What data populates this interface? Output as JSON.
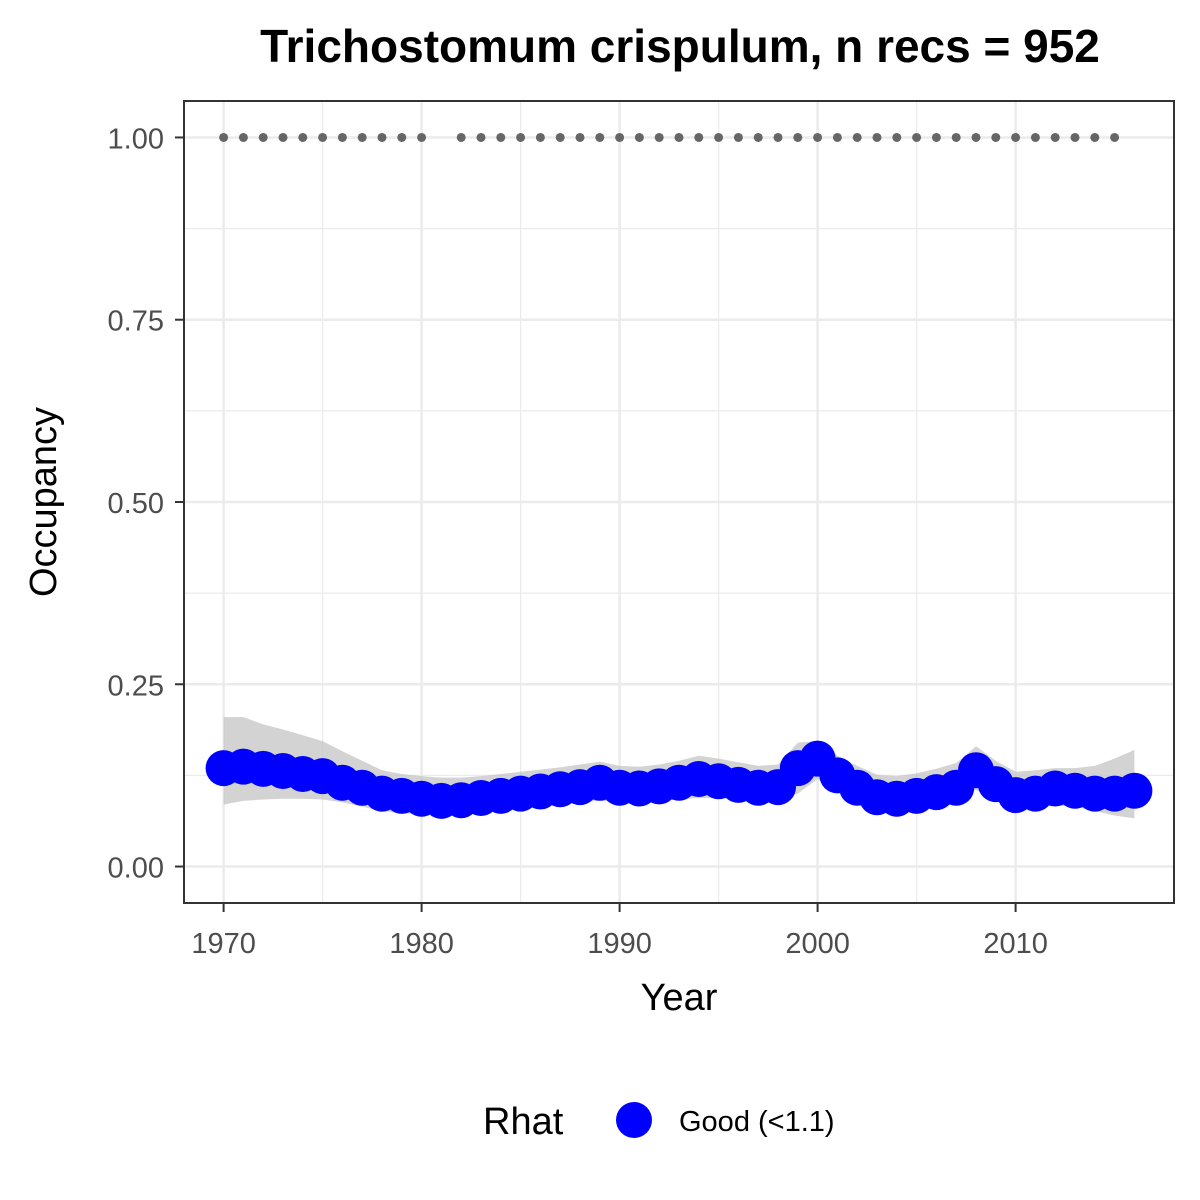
{
  "chart_data": {
    "type": "line",
    "title": "Trichostomum crispulum, n recs = 952",
    "xlabel": "Year",
    "ylabel": "Occupancy",
    "xlim": [
      1968,
      2018
    ],
    "ylim": [
      -0.05,
      1.05
    ],
    "x_ticks": [
      1970,
      1980,
      1990,
      2000,
      2010
    ],
    "x_tick_labels": [
      "1970",
      "1980",
      "1990",
      "2000",
      "2010"
    ],
    "y_ticks": [
      0,
      0.25,
      0.5,
      0.75,
      1
    ],
    "y_tick_labels": [
      "0.00",
      "0.25",
      "0.50",
      "0.75",
      "1.00"
    ],
    "grid": true,
    "legend": {
      "position": "bottom",
      "title": "Rhat",
      "entries": [
        {
          "label": "Good (<1.1)",
          "color": "#0000ff"
        }
      ]
    },
    "series": [
      {
        "name": "Good (<1.1)",
        "color": "#0000ff",
        "x": [
          1970,
          1971,
          1972,
          1973,
          1974,
          1975,
          1976,
          1977,
          1978,
          1979,
          1980,
          1981,
          1982,
          1983,
          1984,
          1985,
          1986,
          1987,
          1988,
          1989,
          1990,
          1991,
          1992,
          1993,
          1994,
          1995,
          1996,
          1997,
          1998,
          1999,
          2000,
          2001,
          2002,
          2003,
          2004,
          2005,
          2006,
          2007,
          2008,
          2009,
          2010,
          2011,
          2012,
          2013,
          2014,
          2015,
          2016
        ],
        "y": [
          0.135,
          0.137,
          0.134,
          0.131,
          0.127,
          0.124,
          0.115,
          0.108,
          0.1,
          0.097,
          0.093,
          0.09,
          0.091,
          0.094,
          0.097,
          0.1,
          0.103,
          0.106,
          0.109,
          0.115,
          0.108,
          0.107,
          0.11,
          0.115,
          0.12,
          0.117,
          0.112,
          0.108,
          0.109,
          0.135,
          0.148,
          0.125,
          0.108,
          0.095,
          0.093,
          0.097,
          0.102,
          0.108,
          0.132,
          0.113,
          0.098,
          0.1,
          0.107,
          0.104,
          0.1,
          0.1,
          0.104
        ],
        "lower": [
          0.085,
          0.09,
          0.092,
          0.093,
          0.093,
          0.092,
          0.088,
          0.082,
          0.076,
          0.073,
          0.072,
          0.072,
          0.074,
          0.076,
          0.078,
          0.08,
          0.083,
          0.086,
          0.088,
          0.09,
          0.088,
          0.088,
          0.09,
          0.092,
          0.094,
          0.094,
          0.092,
          0.091,
          0.092,
          0.1,
          0.12,
          0.103,
          0.088,
          0.079,
          0.078,
          0.081,
          0.084,
          0.089,
          0.105,
          0.092,
          0.08,
          0.081,
          0.084,
          0.082,
          0.076,
          0.07,
          0.066
        ],
        "upper": [
          0.205,
          0.205,
          0.195,
          0.188,
          0.18,
          0.172,
          0.158,
          0.145,
          0.132,
          0.127,
          0.124,
          0.122,
          0.122,
          0.124,
          0.127,
          0.13,
          0.133,
          0.136,
          0.14,
          0.144,
          0.138,
          0.137,
          0.14,
          0.145,
          0.152,
          0.148,
          0.143,
          0.138,
          0.14,
          0.17,
          0.172,
          0.152,
          0.138,
          0.126,
          0.124,
          0.128,
          0.134,
          0.142,
          0.165,
          0.145,
          0.13,
          0.132,
          0.135,
          0.135,
          0.138,
          0.148,
          0.16
        ]
      }
    ],
    "detection_points": {
      "y": 1,
      "x": [
        1970,
        1971,
        1972,
        1973,
        1974,
        1975,
        1976,
        1977,
        1978,
        1979,
        1980,
        1982,
        1983,
        1984,
        1985,
        1986,
        1987,
        1988,
        1989,
        1990,
        1991,
        1992,
        1993,
        1994,
        1995,
        1996,
        1997,
        1998,
        1999,
        2000,
        2001,
        2002,
        2003,
        2004,
        2005,
        2006,
        2007,
        2008,
        2009,
        2010,
        2011,
        2012,
        2013,
        2014,
        2015
      ],
      "color": "#666666"
    }
  }
}
